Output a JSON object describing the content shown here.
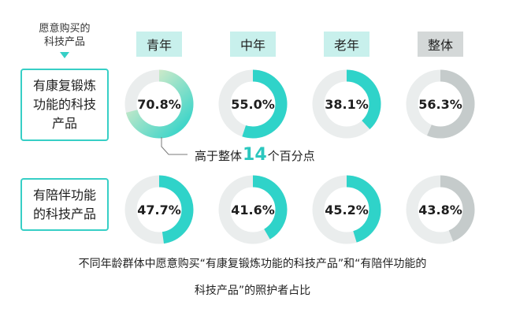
{
  "corner_label": "愿意购买的\n科技产品",
  "colors": {
    "accent": "#2fd3c9",
    "track": "#eaeded",
    "overall_fill": "#c5cbcb",
    "head_bg": "#c8f0ec",
    "overall_head_bg": "#d4d8d8",
    "gradient_end": "#f4efc9"
  },
  "annotation": {
    "prefix": "高于整体",
    "number": "14",
    "suffix": "个百分点"
  },
  "caption": {
    "line1": "不同年龄群体中愿意购买“有康复锻炼功能的科技产品”和“有陪伴功能的",
    "line2": "科技产品”的照护者占比"
  },
  "chart_data": {
    "type": "donut",
    "unit": "%",
    "categories": [
      "青年",
      "中年",
      "老年",
      "整体"
    ],
    "rows": [
      {
        "label": "有康复锻炼\n功能的科技\n产品",
        "values": [
          70.8,
          55.0,
          38.1,
          56.3
        ],
        "value_labels": [
          "70.8%",
          "55.0%",
          "38.1%",
          "56.3%"
        ]
      },
      {
        "label": "有陪伴功能\n的科技产品",
        "values": [
          47.7,
          41.6,
          45.2,
          43.8
        ],
        "value_labels": [
          "47.7%",
          "41.6%",
          "45.2%",
          "43.8%"
        ]
      }
    ]
  }
}
